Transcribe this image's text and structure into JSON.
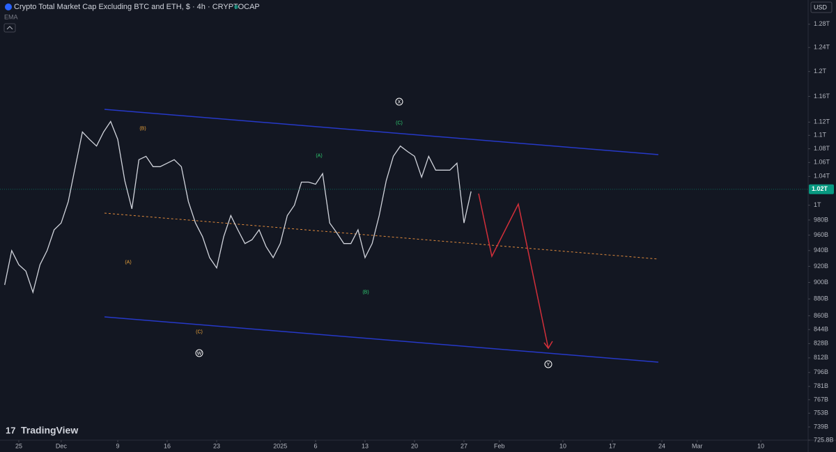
{
  "chart_data": {
    "type": "line",
    "title": "Crypto Total Market Cap Excluding BTC and ETH, $ · 4h · CRYPTOCAP",
    "indicator": "EMA",
    "currency": "USD",
    "brand": "TradingView",
    "log_scale": true,
    "color": "#d1d4dc",
    "x": [
      -2,
      -1,
      0,
      1,
      2,
      3,
      4,
      5,
      6,
      7,
      8,
      9,
      10,
      11,
      12,
      13,
      14,
      15,
      16,
      17,
      18,
      19,
      20,
      21,
      22,
      23,
      24,
      25,
      26,
      27,
      28,
      29,
      30,
      31,
      32,
      33,
      34,
      35,
      36,
      37,
      38,
      39,
      40,
      41,
      42,
      43,
      44,
      45,
      46,
      47,
      48,
      49,
      50,
      51,
      52,
      53,
      54,
      55,
      56,
      57,
      58,
      59,
      60,
      61,
      62,
      63,
      64
    ],
    "values": [
      897,
      940,
      922,
      914,
      888,
      922,
      940,
      967,
      976,
      1005,
      1054,
      1105,
      1094,
      1084,
      1105,
      1121,
      1094,
      1034,
      995,
      1064,
      1069,
      1054,
      1054,
      1059,
      1064,
      1054,
      1005,
      976,
      958,
      931,
      918,
      958,
      986,
      967,
      949,
      954,
      967,
      945,
      931,
      949,
      986,
      1000,
      1032,
      1032,
      1029,
      1044,
      976,
      963,
      949,
      949,
      967,
      931,
      949,
      986,
      1034,
      1069,
      1084,
      1076,
      1069,
      1039,
      1069,
      1049,
      1049,
      1049,
      1059,
      976,
      1019
    ],
    "last_price": {
      "value": 1022,
      "label": "1.02T"
    },
    "xlim": [
      -2.66,
      111.7
    ],
    "xticks": [
      {
        "value": 0,
        "label": "25"
      },
      {
        "value": 6,
        "label": "Dec"
      },
      {
        "value": 14,
        "label": "9"
      },
      {
        "value": 21,
        "label": "16"
      },
      {
        "value": 28,
        "label": "23"
      },
      {
        "value": 37,
        "label": "2025"
      },
      {
        "value": 42,
        "label": "6"
      },
      {
        "value": 49,
        "label": "13"
      },
      {
        "value": 56,
        "label": "20"
      },
      {
        "value": 63,
        "label": "27"
      },
      {
        "value": 68,
        "label": "Feb"
      },
      {
        "value": 77,
        "label": "10"
      },
      {
        "value": 84,
        "label": "17"
      },
      {
        "value": 91,
        "label": "24"
      },
      {
        "value": 96,
        "label": "Mar"
      },
      {
        "value": 105,
        "label": "10"
      }
    ],
    "ylim": [
      725.8,
      1323
    ],
    "yticks": [
      {
        "value": 1280,
        "label": "1.28T"
      },
      {
        "value": 1240,
        "label": "1.24T"
      },
      {
        "value": 1200,
        "label": "1.2T"
      },
      {
        "value": 1160,
        "label": "1.16T"
      },
      {
        "value": 1120,
        "label": "1.12T"
      },
      {
        "value": 1100,
        "label": "1.1T"
      },
      {
        "value": 1080,
        "label": "1.08T"
      },
      {
        "value": 1060,
        "label": "1.06T"
      },
      {
        "value": 1040,
        "label": "1.04T"
      },
      {
        "value": 1000,
        "label": "1T"
      },
      {
        "value": 980,
        "label": "980B"
      },
      {
        "value": 960,
        "label": "960B"
      },
      {
        "value": 940,
        "label": "940B"
      },
      {
        "value": 920,
        "label": "920B"
      },
      {
        "value": 900,
        "label": "900B"
      },
      {
        "value": 880,
        "label": "880B"
      },
      {
        "value": 860,
        "label": "860B"
      },
      {
        "value": 844,
        "label": "844B"
      },
      {
        "value": 828,
        "label": "828B"
      },
      {
        "value": 812,
        "label": "812B"
      },
      {
        "value": 796,
        "label": "796B"
      },
      {
        "value": 781,
        "label": "781B"
      },
      {
        "value": 767,
        "label": "767B"
      },
      {
        "value": 753,
        "label": "753B"
      },
      {
        "value": 739,
        "label": "739B"
      },
      {
        "value": 725.8,
        "label": "725.8B"
      }
    ],
    "annotations": [
      "(B)",
      "(A)",
      "(C)",
      "W",
      "(A)",
      "(B)",
      "(C)",
      "X",
      "Y"
    ]
  }
}
